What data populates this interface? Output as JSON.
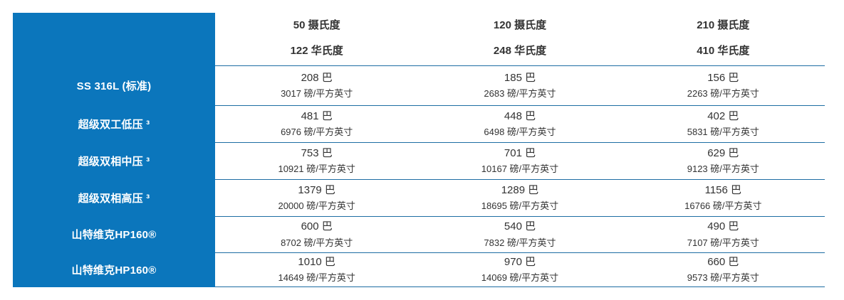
{
  "colors": {
    "panel_blue": "#0b76bc",
    "border_blue": "#1d6da3",
    "text": "#333333",
    "label_text": "#ffffff",
    "background": "#ffffff"
  },
  "table": {
    "header": {
      "columns": [
        {
          "celsius": "50 摄氏度",
          "fahrenheit": "122 华氏度"
        },
        {
          "celsius": "120 摄氏度",
          "fahrenheit": "248 华氏度"
        },
        {
          "celsius": "210 摄氏度",
          "fahrenheit": "410 华氏度"
        }
      ]
    },
    "rows": [
      {
        "label": "SS 316L (标准)",
        "cells": [
          {
            "bar": "208 巴",
            "psi": "3017 磅/平方英寸"
          },
          {
            "bar": "185 巴",
            "psi": "2683 磅/平方英寸"
          },
          {
            "bar": "156 巴",
            "psi": "2263 磅/平方英寸"
          }
        ]
      },
      {
        "label": "超级双工低压 ³",
        "cells": [
          {
            "bar": "481 巴",
            "psi": "6976 磅/平方英寸"
          },
          {
            "bar": "448 巴",
            "psi": "6498 磅/平方英寸"
          },
          {
            "bar": "402 巴",
            "psi": "5831 磅/平方英寸"
          }
        ]
      },
      {
        "label": "超级双相中压 ³",
        "cells": [
          {
            "bar": "753 巴",
            "psi": "10921 磅/平方英寸"
          },
          {
            "bar": "701 巴",
            "psi": "10167 磅/平方英寸"
          },
          {
            "bar": "629 巴",
            "psi": "9123 磅/平方英寸"
          }
        ]
      },
      {
        "label": "超级双相高压 ³",
        "cells": [
          {
            "bar": "1379 巴",
            "psi": "20000 磅/平方英寸"
          },
          {
            "bar": "1289 巴",
            "psi": "18695 磅/平方英寸"
          },
          {
            "bar": "1156 巴",
            "psi": "16766 磅/平方英寸"
          }
        ]
      },
      {
        "label": "山特维克HP160®",
        "cells": [
          {
            "bar": "600 巴",
            "psi": "8702 磅/平方英寸"
          },
          {
            "bar": "540 巴",
            "psi": "7832 磅/平方英寸"
          },
          {
            "bar": "490 巴",
            "psi": "7107 磅/平方英寸"
          }
        ]
      },
      {
        "label": "山特维克HP160®",
        "cells": [
          {
            "bar": "1010 巴",
            "psi": "14649 磅/平方英寸"
          },
          {
            "bar": "970 巴",
            "psi": "14069 磅/平方英寸"
          },
          {
            "bar": "660 巴",
            "psi": "9573 磅/平方英寸"
          }
        ]
      }
    ]
  },
  "chart_data": {
    "type": "table",
    "title": "",
    "column_headers": [
      [
        "50 摄氏度",
        "122 华氏度"
      ],
      [
        "120 摄氏度",
        "248 华氏度"
      ],
      [
        "210 摄氏度",
        "410 华氏度"
      ]
    ],
    "row_labels": [
      "SS 316L (标准)",
      "超级双工低压 ³",
      "超级双相中压 ³",
      "超级双相高压 ³",
      "山特维克HP160®",
      "山特维克HP160®"
    ],
    "values_bar": [
      [
        208,
        185,
        156
      ],
      [
        481,
        448,
        402
      ],
      [
        753,
        701,
        629
      ],
      [
        1379,
        1289,
        1156
      ],
      [
        600,
        540,
        490
      ],
      [
        1010,
        970,
        660
      ]
    ],
    "values_psi": [
      [
        3017,
        2683,
        2263
      ],
      [
        6976,
        6498,
        5831
      ],
      [
        10921,
        10167,
        9123
      ],
      [
        20000,
        18695,
        16766
      ],
      [
        8702,
        7832,
        7107
      ],
      [
        14649,
        14069,
        9573
      ]
    ],
    "units": {
      "pressure_metric": "巴",
      "pressure_imperial": "磅/平方英寸",
      "temp_metric": "摄氏度",
      "temp_imperial": "华氏度"
    }
  }
}
